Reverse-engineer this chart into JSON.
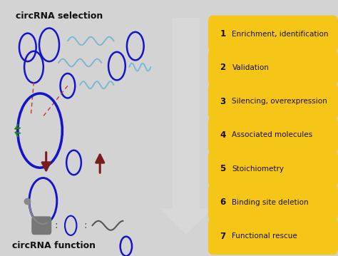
{
  "left_bg_color": "#d3d3d3",
  "right_bg_color": "#6e6e6e",
  "title_left": "circRNA selection",
  "title_bottom": "circRNA function",
  "steps": [
    [
      "1",
      "Enrichment, identification"
    ],
    [
      "2",
      "Validation"
    ],
    [
      "3",
      "Silencing, overexpression"
    ],
    [
      "4",
      "Associated molecules"
    ],
    [
      "5",
      "Stoichiometry"
    ],
    [
      "6",
      "Binding site deletion"
    ],
    [
      "7",
      "Functional rescue"
    ]
  ],
  "pill_color": "#f5c518",
  "pill_text_color": "#1a1200",
  "circle_color": "#1414cc",
  "circle_lw": 1.8,
  "wave_color": "#7ab8d4",
  "red_arrow_color": "#7a1c1c",
  "dashed_color": "#cc3333",
  "gray_color": "#888888",
  "white_arrow_color": "#d8d8d8"
}
